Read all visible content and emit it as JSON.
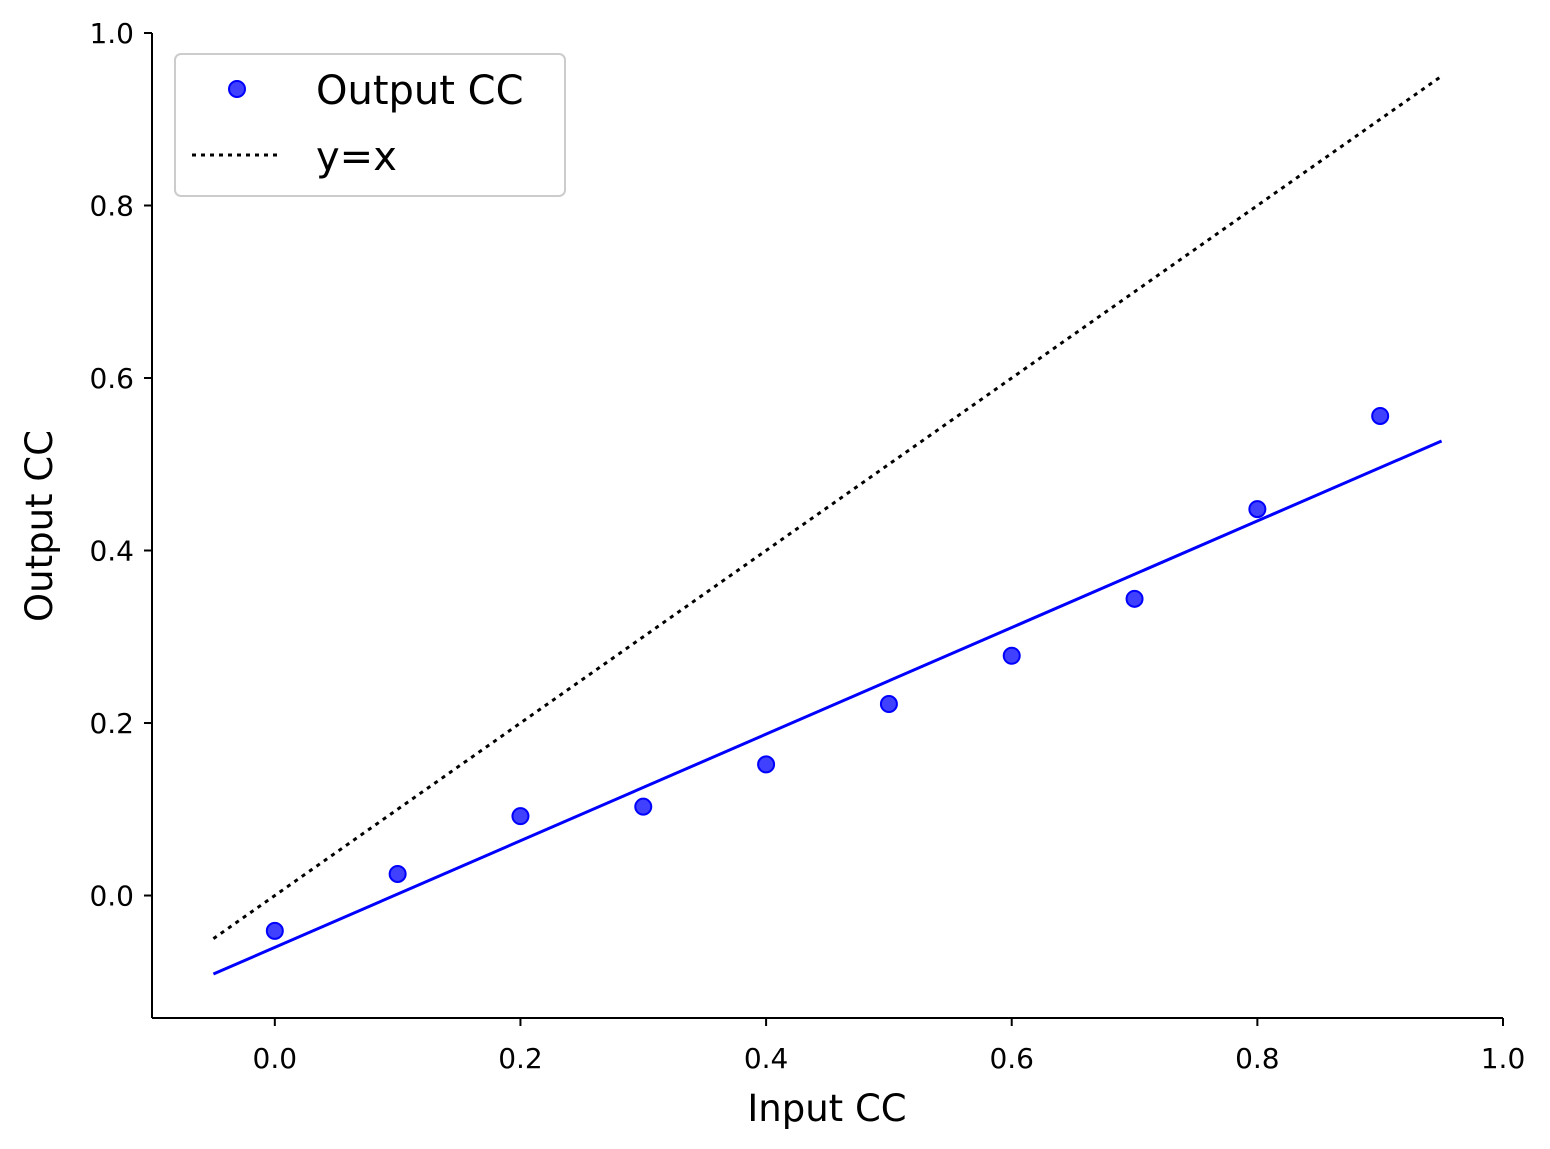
{
  "chart_data": {
    "type": "scatter",
    "xlabel": "Input CC",
    "ylabel": "Output CC",
    "xlim": [
      -0.1,
      1.0
    ],
    "ylim": [
      -0.142,
      1.0
    ],
    "xticks": [
      "0.0",
      "0.2",
      "0.4",
      "0.6",
      "0.8",
      "1.0"
    ],
    "yticks": [
      "0.0",
      "0.2",
      "0.4",
      "0.6",
      "0.8",
      "1.0"
    ],
    "grid": false,
    "legend_position": "top-left",
    "series": [
      {
        "name": "Output CC",
        "kind": "scatter",
        "color": "#0000ff",
        "x": [
          0.0,
          0.1,
          0.2,
          0.3,
          0.4,
          0.5,
          0.6,
          0.7,
          0.8,
          0.9
        ],
        "y": [
          -0.041,
          0.025,
          0.092,
          0.103,
          0.152,
          0.222,
          0.278,
          0.344,
          0.448,
          0.556
        ]
      },
      {
        "name": "y=x",
        "kind": "line",
        "style": "dotted",
        "color": "#000000",
        "x": [
          -0.05,
          0.95
        ],
        "y": [
          -0.05,
          0.95
        ]
      },
      {
        "kind": "line",
        "style": "solid",
        "color": "#0000ff",
        "x": [
          -0.05,
          0.95
        ],
        "y": [
          -0.091,
          0.527
        ]
      }
    ]
  }
}
